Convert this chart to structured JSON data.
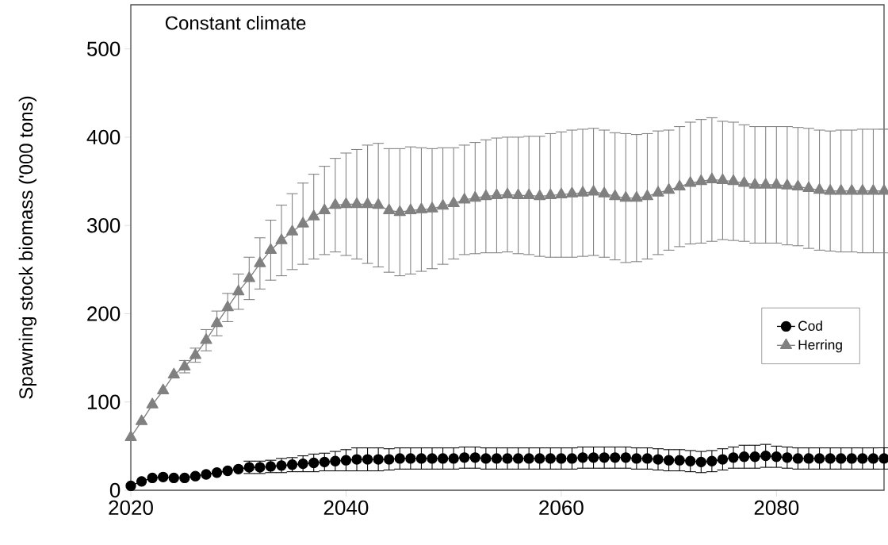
{
  "chart_data": {
    "type": "line",
    "title": "Constant climate",
    "ylabel": "Spawning stock biomass ('000 tons)",
    "x": [
      2020,
      2021,
      2022,
      2023,
      2024,
      2025,
      2026,
      2027,
      2028,
      2029,
      2030,
      2031,
      2032,
      2033,
      2034,
      2035,
      2036,
      2037,
      2038,
      2039,
      2040,
      2041,
      2042,
      2043,
      2044,
      2045,
      2046,
      2047,
      2048,
      2049,
      2050,
      2051,
      2052,
      2053,
      2054,
      2055,
      2056,
      2057,
      2058,
      2059,
      2060,
      2061,
      2062,
      2063,
      2064,
      2065,
      2066,
      2067,
      2068,
      2069,
      2070,
      2071,
      2072,
      2073,
      2074,
      2075,
      2076,
      2077,
      2078,
      2079,
      2080,
      2081,
      2082,
      2083,
      2084,
      2085,
      2086,
      2087,
      2088,
      2089,
      2090
    ],
    "series": [
      {
        "name": "Cod",
        "color": "#000000",
        "marker": "circle",
        "values": [
          5,
          10,
          14,
          15,
          14,
          14,
          16,
          18,
          20,
          22,
          24,
          26,
          26,
          27,
          28,
          29,
          30,
          31,
          32,
          33,
          34,
          35,
          35,
          35,
          35,
          36,
          36,
          36,
          36,
          36,
          36,
          37,
          37,
          36,
          36,
          36,
          36,
          36,
          36,
          36,
          36,
          36,
          37,
          37,
          37,
          37,
          37,
          36,
          36,
          35,
          34,
          34,
          33,
          32,
          33,
          35,
          37,
          38,
          38,
          39,
          38,
          37,
          36,
          36,
          36,
          36,
          36,
          36,
          36,
          36,
          36
        ],
        "errors": [
          null,
          null,
          null,
          null,
          null,
          null,
          null,
          null,
          null,
          null,
          null,
          7,
          7,
          7,
          8,
          8,
          9,
          10,
          10,
          11,
          12,
          13,
          13,
          13,
          12,
          12,
          12,
          12,
          12,
          12,
          12,
          12,
          12,
          12,
          12,
          12,
          12,
          12,
          12,
          12,
          12,
          12,
          12,
          12,
          12,
          12,
          12,
          12,
          12,
          12,
          12,
          12,
          12,
          12,
          12,
          12,
          12,
          13,
          13,
          13,
          12,
          12,
          12,
          12,
          12,
          12,
          12,
          12,
          12,
          12,
          12
        ]
      },
      {
        "name": "Herring",
        "color": "#808080",
        "marker": "triangle",
        "values": [
          60,
          78,
          97,
          113,
          131,
          140,
          153,
          170,
          189,
          207,
          225,
          240,
          257,
          272,
          283,
          293,
          302,
          310,
          317,
          323,
          324,
          324,
          324,
          323,
          317,
          315,
          317,
          318,
          319,
          322,
          325,
          329,
          331,
          333,
          334,
          335,
          334,
          334,
          333,
          334,
          335,
          336,
          337,
          338,
          336,
          333,
          331,
          331,
          333,
          337,
          340,
          344,
          348,
          350,
          352,
          351,
          350,
          348,
          346,
          346,
          346,
          345,
          344,
          342,
          340,
          339,
          339,
          339,
          339,
          339,
          339
        ],
        "errors": [
          null,
          null,
          null,
          null,
          null,
          7,
          8,
          12,
          14,
          16,
          20,
          24,
          29,
          34,
          40,
          43,
          46,
          48,
          50,
          53,
          58,
          62,
          67,
          70,
          70,
          72,
          72,
          70,
          68,
          66,
          63,
          62,
          63,
          64,
          65,
          65,
          66,
          67,
          68,
          70,
          71,
          72,
          72,
          72,
          72,
          72,
          73,
          72,
          71,
          70,
          68,
          68,
          69,
          70,
          70,
          67,
          67,
          66,
          66,
          66,
          66,
          67,
          67,
          68,
          68,
          68,
          69,
          69,
          70,
          70,
          70
        ]
      }
    ],
    "xlim": [
      2020,
      2090
    ],
    "ylim": [
      0,
      550
    ],
    "xticks": [
      2020,
      2040,
      2060,
      2080
    ],
    "yticks": [
      0,
      100,
      200,
      300,
      400,
      500
    ],
    "legend": "right",
    "grid": false
  }
}
